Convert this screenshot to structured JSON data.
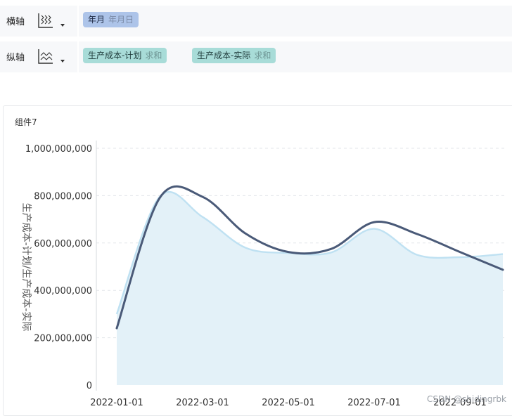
{
  "header": {
    "x_axis": {
      "label": "横轴",
      "icon": "x-axis-dimension-icon",
      "pill": {
        "name": "年月",
        "agg": "年月日"
      }
    },
    "y_axis": {
      "label": "纵轴",
      "icon": "y-axis-measure-icon",
      "pills": [
        {
          "name": "生产成本-计划",
          "agg": "求和"
        },
        {
          "name": "生产成本-实际",
          "agg": "求和"
        }
      ]
    }
  },
  "component": {
    "title": "组件7"
  },
  "chart_data": {
    "type": "line",
    "ylabel": "生产成本-计划/生产成本-实际",
    "ylim": [
      0,
      1000000000
    ],
    "y_ticks": [
      0,
      200000000,
      400000000,
      600000000,
      800000000,
      1000000000
    ],
    "y_tick_labels": [
      "0",
      "200,000,000",
      "400,000,000",
      "600,000,000",
      "800,000,000",
      "1,000,000,000"
    ],
    "x_tick_labels": [
      "2022-01-01",
      "2022-03-01",
      "2022-05-01",
      "2022-07-01",
      "2022-09-01"
    ],
    "x": [
      "2022-01-01",
      "2022-02-01",
      "2022-03-01",
      "2022-04-01",
      "2022-05-01",
      "2022-06-01",
      "2022-07-01",
      "2022-08-01",
      "2022-09-01",
      "2022-10-01"
    ],
    "series": [
      {
        "name": "生产成本-计划",
        "style": "area",
        "color": "#bfe1f2",
        "values": [
          300000000,
          795000000,
          710000000,
          580000000,
          558000000,
          560000000,
          660000000,
          550000000,
          540000000,
          553000000
        ]
      },
      {
        "name": "生产成本-实际",
        "style": "line",
        "color": "#4a5a78",
        "values": [
          240000000,
          790000000,
          795000000,
          640000000,
          562000000,
          575000000,
          688000000,
          638000000,
          562000000,
          487000000
        ]
      }
    ],
    "grid": "horizontal-dashed",
    "legend": "none"
  },
  "watermark": "CSDN @shidingrbk"
}
